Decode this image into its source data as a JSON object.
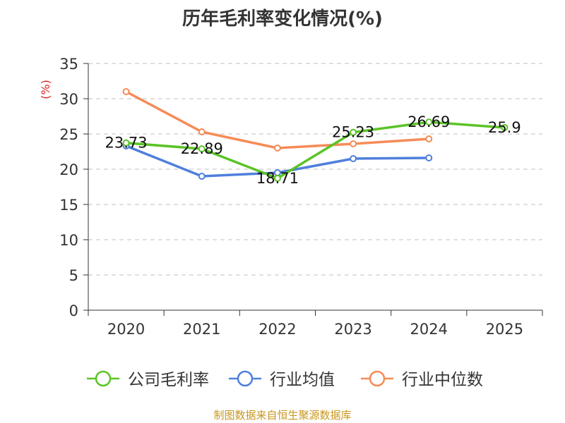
{
  "chart_data": {
    "type": "line",
    "title": "历年毛利率变化情况(%)",
    "ylabel": "(%)",
    "xlabel": "",
    "categories": [
      "2020",
      "2021",
      "2022",
      "2023",
      "2024",
      "2025"
    ],
    "ylim": [
      0,
      35
    ],
    "yticks": [
      0,
      5,
      10,
      15,
      20,
      25,
      30,
      35
    ],
    "grid": "horizontal-dashed",
    "legend_position": "bottom",
    "series": [
      {
        "name": "公司毛利率",
        "color": "#5bc326",
        "values": [
          23.73,
          22.89,
          18.71,
          25.23,
          26.69,
          25.9
        ],
        "labels": [
          "23.73",
          "22.89",
          "18.71",
          "25.23",
          "26.69",
          "25.9"
        ]
      },
      {
        "name": "行业均值",
        "color": "#4f7fdc",
        "values": [
          23.3,
          19.0,
          19.5,
          21.5,
          21.6,
          null
        ]
      },
      {
        "name": "行业中位数",
        "color": "#f68b57",
        "values": [
          31.0,
          25.3,
          23.0,
          23.6,
          24.3,
          null
        ]
      }
    ]
  },
  "source": "制图数据来自恒生聚源数据库"
}
